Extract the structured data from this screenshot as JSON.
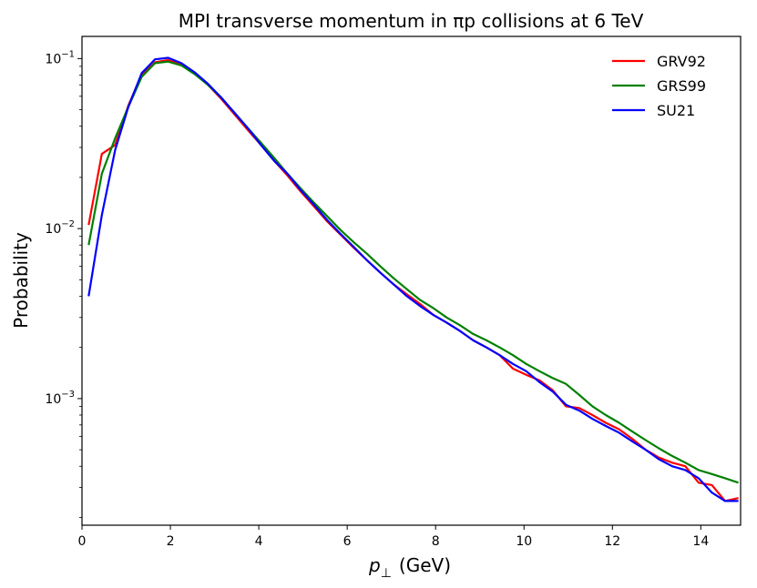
{
  "chart_data": {
    "type": "line",
    "title": "MPI transverse momentum in πp collisions at 6 TeV",
    "xlabel": "p⊥ (GeV)",
    "xlabel_symbol": "p",
    "xlabel_sub": "⊥",
    "xlabel_unit": "(GeV)",
    "ylabel": "Probability",
    "xlim": [
      0,
      14.9
    ],
    "ylim": [
      0.00018,
      0.135
    ],
    "yscale": "log",
    "x_ticks": [
      "0",
      "2",
      "4",
      "6",
      "8",
      "10",
      "12",
      "14"
    ],
    "y_ticks": [
      {
        "base": "10",
        "exp": "−1"
      },
      {
        "base": "10",
        "exp": "−2"
      },
      {
        "base": "10",
        "exp": "−3"
      }
    ],
    "legend_position": "top-right",
    "x": [
      0.15,
      0.45,
      0.75,
      1.05,
      1.35,
      1.65,
      1.95,
      2.25,
      2.55,
      2.85,
      3.15,
      3.45,
      3.75,
      4.05,
      4.35,
      4.65,
      4.95,
      5.25,
      5.55,
      5.85,
      6.15,
      6.45,
      6.75,
      7.05,
      7.35,
      7.65,
      7.95,
      8.25,
      8.55,
      8.85,
      9.15,
      9.45,
      9.75,
      10.05,
      10.35,
      10.65,
      10.95,
      11.25,
      11.55,
      11.85,
      12.15,
      12.45,
      12.75,
      13.05,
      13.35,
      13.65,
      13.95,
      14.25,
      14.55,
      14.85
    ],
    "series": [
      {
        "name": "GRV92",
        "color": "#ff0000",
        "values": [
          0.0105,
          0.0275,
          0.031,
          0.053,
          0.08,
          0.095,
          0.098,
          0.092,
          0.082,
          0.07,
          0.058,
          0.047,
          0.038,
          0.031,
          0.025,
          0.0205,
          0.0165,
          0.0135,
          0.011,
          0.0092,
          0.0077,
          0.0065,
          0.0055,
          0.0047,
          0.0041,
          0.0036,
          0.0031,
          0.0028,
          0.0025,
          0.0022,
          0.002,
          0.0018,
          0.0015,
          0.00138,
          0.00128,
          0.00112,
          0.0009,
          0.00088,
          0.0008,
          0.00072,
          0.00066,
          0.00058,
          0.0005,
          0.00045,
          0.00042,
          0.0004,
          0.00032,
          0.00031,
          0.00025,
          0.00026
        ]
      },
      {
        "name": "GRS99",
        "color": "#008000",
        "values": [
          0.008,
          0.021,
          0.034,
          0.052,
          0.078,
          0.094,
          0.096,
          0.091,
          0.081,
          0.07,
          0.059,
          0.048,
          0.039,
          0.032,
          0.026,
          0.021,
          0.0172,
          0.0142,
          0.0118,
          0.0098,
          0.0083,
          0.0071,
          0.006,
          0.0051,
          0.0044,
          0.0038,
          0.0034,
          0.003,
          0.0027,
          0.0024,
          0.0022,
          0.002,
          0.0018,
          0.0016,
          0.00145,
          0.00132,
          0.00122,
          0.00105,
          0.0009,
          0.0008,
          0.00072,
          0.00064,
          0.00057,
          0.00051,
          0.00046,
          0.00042,
          0.00038,
          0.00036,
          0.00034,
          0.00032
        ]
      },
      {
        "name": "SU21",
        "color": "#0000ff",
        "values": [
          0.004,
          0.012,
          0.029,
          0.052,
          0.082,
          0.099,
          0.101,
          0.094,
          0.083,
          0.071,
          0.059,
          0.048,
          0.039,
          0.031,
          0.025,
          0.021,
          0.0168,
          0.0138,
          0.0112,
          0.0093,
          0.0078,
          0.0065,
          0.0055,
          0.0047,
          0.004,
          0.0035,
          0.0031,
          0.0028,
          0.0025,
          0.0022,
          0.002,
          0.0018,
          0.0016,
          0.00145,
          0.00125,
          0.0011,
          0.00092,
          0.00085,
          0.00076,
          0.00069,
          0.00063,
          0.00056,
          0.0005,
          0.00044,
          0.0004,
          0.00038,
          0.00034,
          0.00028,
          0.00025,
          0.00025
        ]
      }
    ]
  }
}
